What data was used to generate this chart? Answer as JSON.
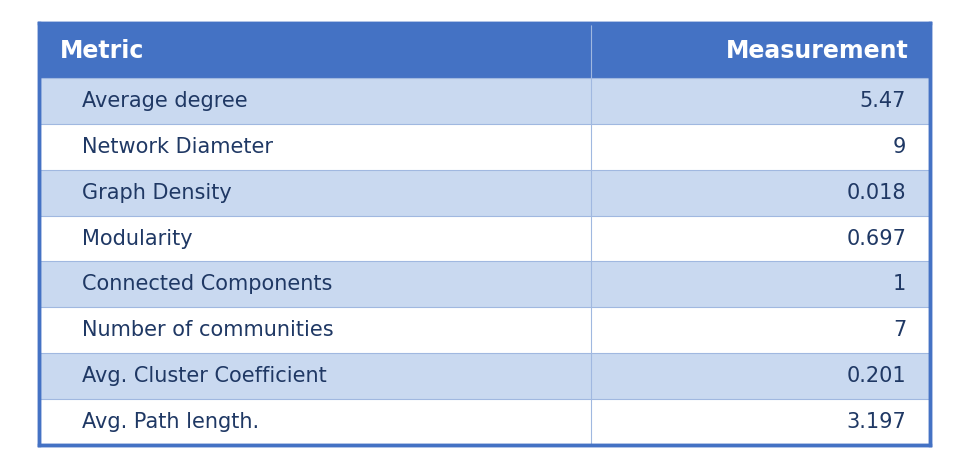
{
  "headers": [
    "Metric",
    "Measurement"
  ],
  "rows": [
    [
      "Average degree",
      "5.47"
    ],
    [
      "Network Diameter",
      "9"
    ],
    [
      "Graph Density",
      "0.018"
    ],
    [
      "Modularity",
      "0.697"
    ],
    [
      "Connected Components",
      "1"
    ],
    [
      "Number of communities",
      "7"
    ],
    [
      "Avg. Cluster Coefficient",
      "0.201"
    ],
    [
      "Avg. Path length.",
      "3.197"
    ]
  ],
  "header_bg_color": "#4472C4",
  "header_text_color": "#FFFFFF",
  "row_bg_light": "#C9D9F0",
  "row_bg_white": "#FFFFFF",
  "row_text_color": "#1F3864",
  "border_color": "#A0B8E0",
  "outer_border_color": "#4472C4",
  "header_font_size": 17,
  "row_font_size": 15,
  "col_split": 0.62,
  "figsize": [
    9.69,
    4.68
  ],
  "dpi": 100,
  "bg_color": "#FFFFFF"
}
